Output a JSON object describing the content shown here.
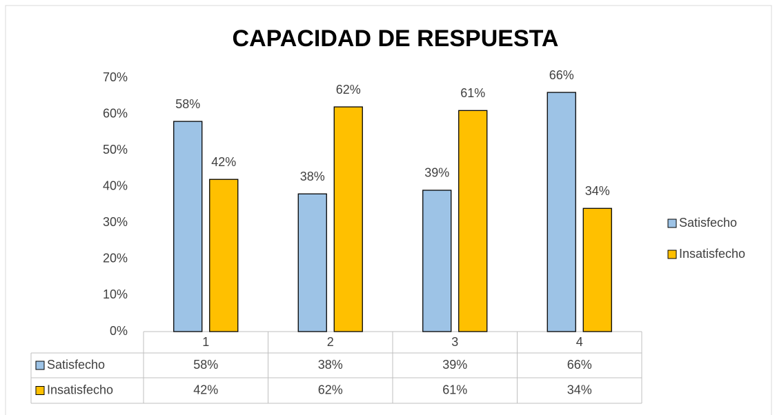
{
  "chart_data": {
    "type": "bar",
    "title": "CAPACIDAD DE RESPUESTA",
    "categories": [
      "1",
      "2",
      "3",
      "4"
    ],
    "series": [
      {
        "name": "Satisfecho",
        "color": "#9dc3e6",
        "values": [
          58,
          38,
          39,
          66
        ],
        "value_labels": [
          "58%",
          "38%",
          "39%",
          "66%"
        ]
      },
      {
        "name": "Insatisfecho",
        "color": "#ffc000",
        "values": [
          42,
          62,
          61,
          34
        ],
        "value_labels": [
          "42%",
          "62%",
          "61%",
          "34%"
        ]
      }
    ],
    "ylim": [
      0,
      70
    ],
    "yticks": [
      {
        "value": 0,
        "label": "0%"
      },
      {
        "value": 10,
        "label": "10%"
      },
      {
        "value": 20,
        "label": "20%"
      },
      {
        "value": 30,
        "label": "30%"
      },
      {
        "value": 40,
        "label": "40%"
      },
      {
        "value": 50,
        "label": "50%"
      },
      {
        "value": 60,
        "label": "60%"
      },
      {
        "value": 70,
        "label": "70%"
      }
    ],
    "grid": false,
    "legend": "right"
  }
}
